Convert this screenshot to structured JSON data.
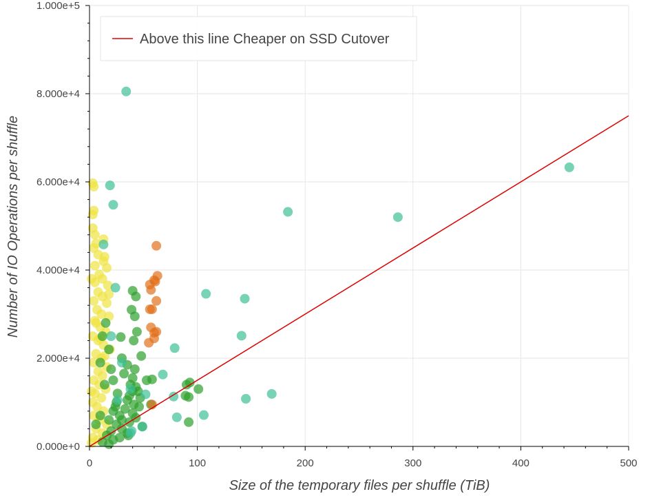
{
  "chart_data": {
    "type": "scatter",
    "xlabel": "Size of the temporary files per shuffle (TiB)",
    "ylabel": "Number of IO Operations per shuffle",
    "xlim": [
      0,
      500
    ],
    "ylim": [
      0,
      100000
    ],
    "x_ticks": [
      {
        "value": 0,
        "label": "0"
      },
      {
        "value": 100,
        "label": "100"
      },
      {
        "value": 200,
        "label": "200"
      },
      {
        "value": 300,
        "label": "300"
      },
      {
        "value": 400,
        "label": "400"
      },
      {
        "value": 500,
        "label": "500"
      }
    ],
    "y_ticks": [
      {
        "value": 0,
        "label": "0.000e+0"
      },
      {
        "value": 20000,
        "label": "2.000e+4"
      },
      {
        "value": 40000,
        "label": "4.000e+4"
      },
      {
        "value": 60000,
        "label": "6.000e+4"
      },
      {
        "value": 80000,
        "label": "8.000e+4"
      },
      {
        "value": 100000,
        "label": "1.000e+5"
      }
    ],
    "grid": true,
    "legend": {
      "placement": "top-left",
      "entries": [
        "Above this line Cheaper on SSD Cutover"
      ]
    },
    "line": {
      "name": "Above this line Cheaper on SSD Cutover",
      "color": "#dd0000",
      "points": [
        [
          0,
          0
        ],
        [
          500,
          75000
        ]
      ]
    },
    "series": [
      {
        "color": "#f0e442",
        "points": [
          [
            3,
            59700
          ],
          [
            4,
            58900
          ],
          [
            4,
            53500
          ],
          [
            3,
            52600
          ],
          [
            3,
            49500
          ],
          [
            5,
            48000
          ],
          [
            13,
            47000
          ],
          [
            4,
            45000
          ],
          [
            8,
            43500
          ],
          [
            13,
            42000
          ],
          [
            5,
            41000
          ],
          [
            16,
            40500
          ],
          [
            9,
            39000
          ],
          [
            12,
            38000
          ],
          [
            5,
            37200
          ],
          [
            17,
            36500
          ],
          [
            8,
            35000
          ],
          [
            12,
            34000
          ],
          [
            4,
            33000
          ],
          [
            16,
            32500
          ],
          [
            7,
            31000
          ],
          [
            11,
            30000
          ],
          [
            18,
            29500
          ],
          [
            5,
            28500
          ],
          [
            10,
            27000
          ],
          [
            15,
            26000
          ],
          [
            3,
            25000
          ],
          [
            8,
            24000
          ],
          [
            13,
            23000
          ],
          [
            19,
            22000
          ],
          [
            6,
            21000
          ],
          [
            11,
            20000
          ],
          [
            4,
            19000
          ],
          [
            16,
            18000
          ],
          [
            8,
            17000
          ],
          [
            12,
            16000
          ],
          [
            4,
            15000
          ],
          [
            9,
            14000
          ],
          [
            15,
            13000
          ],
          [
            5,
            12000
          ],
          [
            11,
            11000
          ],
          [
            3,
            10000
          ],
          [
            7,
            9000
          ],
          [
            13,
            8000
          ],
          [
            4,
            7000
          ],
          [
            9,
            6000
          ],
          [
            16,
            5000
          ],
          [
            6,
            4000
          ],
          [
            12,
            3000
          ],
          [
            3,
            2000
          ],
          [
            8,
            1500
          ],
          [
            2,
            800
          ],
          [
            14,
            43000
          ],
          [
            6,
            46000
          ],
          [
            2,
            38000
          ],
          [
            18,
            34500
          ],
          [
            10,
            24500
          ],
          [
            6,
            28000
          ],
          [
            14,
            20500
          ],
          [
            2,
            12500
          ]
        ]
      },
      {
        "color": "#2ca02c",
        "points": [
          [
            40,
            35300
          ],
          [
            43,
            34000
          ],
          [
            39,
            31000
          ],
          [
            42,
            29500
          ],
          [
            29,
            24800
          ],
          [
            44,
            26000
          ],
          [
            41,
            24000
          ],
          [
            48,
            20500
          ],
          [
            30,
            20000
          ],
          [
            35,
            18500
          ],
          [
            42,
            17500
          ],
          [
            40,
            15500
          ],
          [
            22,
            15000
          ],
          [
            53,
            15000
          ],
          [
            58,
            15200
          ],
          [
            43,
            13500
          ],
          [
            40,
            12500
          ],
          [
            37,
            11500
          ],
          [
            47,
            11000
          ],
          [
            35,
            10500
          ],
          [
            25,
            10000
          ],
          [
            41,
            9500
          ],
          [
            57,
            9500
          ],
          [
            46,
            9000
          ],
          [
            33,
            8500
          ],
          [
            22,
            8000
          ],
          [
            40,
            7500
          ],
          [
            28,
            7000
          ],
          [
            43,
            6500
          ],
          [
            18,
            6000
          ],
          [
            37,
            5500
          ],
          [
            25,
            5000
          ],
          [
            49,
            4500
          ],
          [
            30,
            4000
          ],
          [
            20,
            3500
          ],
          [
            35,
            3000
          ],
          [
            16,
            2500
          ],
          [
            28,
            2000
          ],
          [
            22,
            1500
          ],
          [
            12,
            1000
          ],
          [
            18,
            500
          ],
          [
            90,
            14000
          ],
          [
            93,
            14500
          ],
          [
            101,
            13000
          ],
          [
            89,
            11500
          ],
          [
            92,
            11200
          ],
          [
            92,
            5500
          ],
          [
            15,
            28000
          ],
          [
            12,
            25000
          ],
          [
            18,
            22000
          ],
          [
            10,
            19000
          ],
          [
            20,
            17500
          ],
          [
            14,
            14000
          ],
          [
            26,
            12000
          ],
          [
            32,
            16500
          ],
          [
            38,
            14000
          ],
          [
            45,
            12500
          ],
          [
            24,
            9000
          ],
          [
            30,
            6000
          ],
          [
            10,
            7000
          ],
          [
            6,
            5000
          ],
          [
            36,
            2500
          ]
        ]
      },
      {
        "color": "#3fbf95",
        "points": [
          [
            34,
            80500
          ],
          [
            19,
            59200
          ],
          [
            22,
            54800
          ],
          [
            13,
            45800
          ],
          [
            24,
            36000
          ],
          [
            184,
            53200
          ],
          [
            286,
            52000
          ],
          [
            445,
            63300
          ],
          [
            108,
            34600
          ],
          [
            144,
            33500
          ],
          [
            141,
            25100
          ],
          [
            79,
            22300
          ],
          [
            68,
            16300
          ],
          [
            52,
            11800
          ],
          [
            78,
            11300
          ],
          [
            145,
            10800
          ],
          [
            169,
            11900
          ],
          [
            81,
            6600
          ],
          [
            106,
            7100
          ],
          [
            39,
            3500
          ],
          [
            38,
            3000
          ],
          [
            49,
            4500
          ],
          [
            20,
            25000
          ],
          [
            30,
            19000
          ],
          [
            26,
            10500
          ],
          [
            38,
            13000
          ]
        ]
      },
      {
        "color": "#e1711b",
        "points": [
          [
            62,
            45500
          ],
          [
            63,
            38700
          ],
          [
            60,
            37700
          ],
          [
            61,
            37400
          ],
          [
            56,
            36700
          ],
          [
            57,
            35500
          ],
          [
            62,
            33000
          ],
          [
            56,
            31100
          ],
          [
            58,
            31100
          ],
          [
            57,
            27000
          ],
          [
            60,
            25800
          ],
          [
            60,
            24500
          ],
          [
            55,
            23500
          ],
          [
            58,
            9500
          ],
          [
            62,
            26000
          ]
        ]
      }
    ]
  }
}
